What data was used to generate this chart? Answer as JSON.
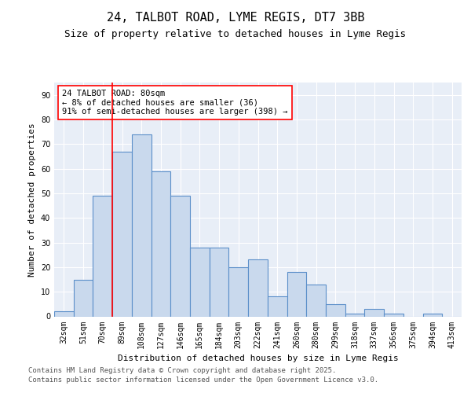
{
  "title_line1": "24, TALBOT ROAD, LYME REGIS, DT7 3BB",
  "title_line2": "Size of property relative to detached houses in Lyme Regis",
  "xlabel": "Distribution of detached houses by size in Lyme Regis",
  "ylabel": "Number of detached properties",
  "categories": [
    "32sqm",
    "51sqm",
    "70sqm",
    "89sqm",
    "108sqm",
    "127sqm",
    "146sqm",
    "165sqm",
    "184sqm",
    "203sqm",
    "222sqm",
    "241sqm",
    "260sqm",
    "280sqm",
    "299sqm",
    "318sqm",
    "337sqm",
    "356sqm",
    "375sqm",
    "394sqm",
    "413sqm"
  ],
  "values": [
    2,
    15,
    49,
    67,
    74,
    59,
    49,
    28,
    28,
    20,
    23,
    8,
    18,
    13,
    5,
    1,
    3,
    1,
    0,
    1,
    0
  ],
  "bar_color": "#c9d9ed",
  "bar_edge_color": "#5b8fc9",
  "bar_edge_width": 0.8,
  "red_line_x": 2.5,
  "annotation_text": "24 TALBOT ROAD: 80sqm\n← 8% of detached houses are smaller (36)\n91% of semi-detached houses are larger (398) →",
  "annotation_box_color": "white",
  "annotation_box_edge": "red",
  "ylim": [
    0,
    95
  ],
  "yticks": [
    0,
    10,
    20,
    30,
    40,
    50,
    60,
    70,
    80,
    90
  ],
  "background_color": "#e8eef7",
  "grid_color": "white",
  "footer_line1": "Contains HM Land Registry data © Crown copyright and database right 2025.",
  "footer_line2": "Contains public sector information licensed under the Open Government Licence v3.0.",
  "title_fontsize": 11,
  "subtitle_fontsize": 9,
  "axis_label_fontsize": 8,
  "tick_fontsize": 7,
  "annotation_fontsize": 7.5,
  "footer_fontsize": 6.5
}
